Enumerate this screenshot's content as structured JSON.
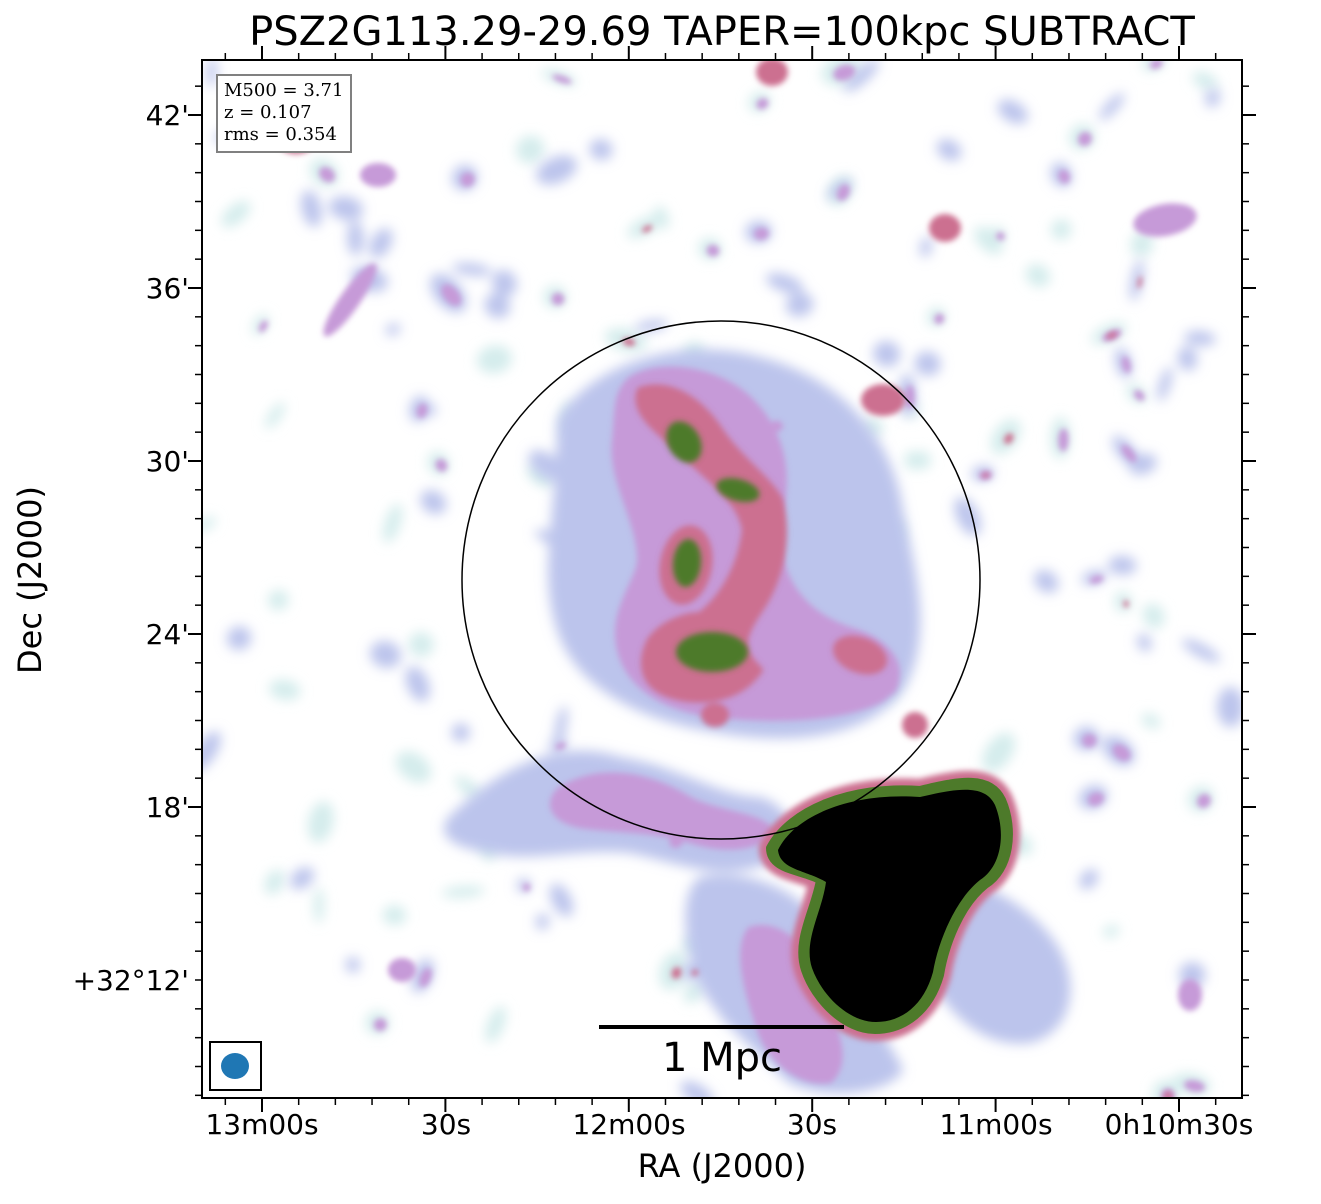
{
  "figure": {
    "title": "PSZ2G113.29-29.69 TAPER=100kpc SUBTRACT",
    "xlabel": "RA (J2000)",
    "ylabel": "Dec (J2000)",
    "y_ticks": [
      "42'",
      "36'",
      "30'",
      "24'",
      "18'",
      "+32°12'"
    ],
    "x_ticks": [
      "13m00s",
      "30s",
      "12m00s",
      "30s",
      "11m00s",
      "0h10m30s"
    ],
    "info": {
      "mass": "M500 = 3.71",
      "redshift": "z = 0.107",
      "rms": "rms = 0.354"
    },
    "scalebar_label": "1 Mpc",
    "colors": {
      "faint": "#d4ecec",
      "low": "#bcc4ec",
      "mid": "#c69ad8",
      "high": "#cc7090",
      "peak": "#4d7a2a",
      "saturated": "#000000",
      "beam": "#1f77b4"
    }
  }
}
